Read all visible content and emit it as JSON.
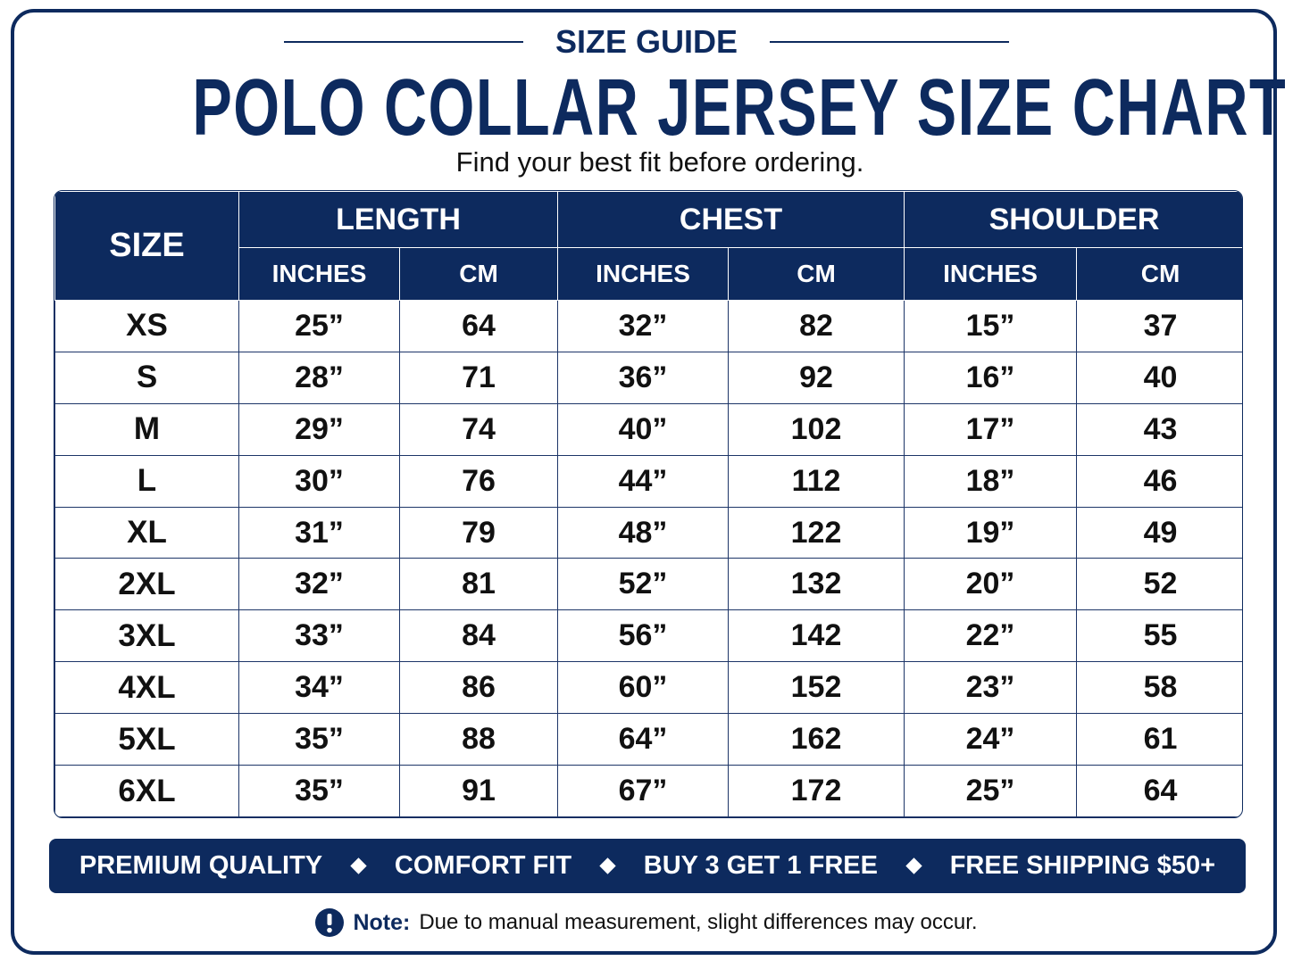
{
  "header": {
    "eyebrow": "SIZE GUIDE",
    "title": "POLO COLLAR JERSEY SIZE CHART",
    "subtitle": "Find your best fit before ordering."
  },
  "table": {
    "size_header": "SIZE",
    "groups": [
      {
        "label": "LENGTH",
        "columns": [
          "INCHES",
          "CM"
        ]
      },
      {
        "label": "CHEST",
        "columns": [
          "INCHES",
          "CM"
        ]
      },
      {
        "label": "SHOULDER",
        "columns": [
          "INCHES",
          "CM"
        ]
      }
    ],
    "rows": [
      [
        "XS",
        "25”",
        "64",
        "32”",
        "82",
        "15”",
        "37"
      ],
      [
        "S",
        "28”",
        "71",
        "36”",
        "92",
        "16”",
        "40"
      ],
      [
        "M",
        "29”",
        "74",
        "40”",
        "102",
        "17”",
        "43"
      ],
      [
        "L",
        "30”",
        "76",
        "44”",
        "112",
        "18”",
        "46"
      ],
      [
        "XL",
        "31”",
        "79",
        "48”",
        "122",
        "19”",
        "49"
      ],
      [
        "2XL",
        "32”",
        "81",
        "52”",
        "132",
        "20”",
        "52"
      ],
      [
        "3XL",
        "33”",
        "84",
        "56”",
        "142",
        "22”",
        "55"
      ],
      [
        "4XL",
        "34”",
        "86",
        "60”",
        "152",
        "23”",
        "58"
      ],
      [
        "5XL",
        "35”",
        "88",
        "64”",
        "162",
        "24”",
        "61"
      ],
      [
        "6XL",
        "35”",
        "91",
        "67”",
        "172",
        "25”",
        "64"
      ]
    ]
  },
  "features": [
    "PREMIUM QUALITY",
    "COMFORT FIT",
    "BUY 3 GET 1 FREE",
    "FREE SHIPPING $50+"
  ],
  "note": {
    "label": "Note:",
    "text": "Due to manual measurement, slight differences may occur."
  }
}
